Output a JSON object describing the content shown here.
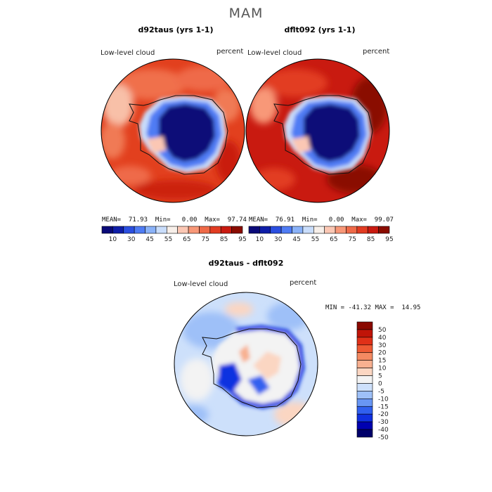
{
  "figure": {
    "title": "MAM"
  },
  "colors": {
    "abs_scale": [
      "#0a0a78",
      "#0f1ea8",
      "#2b4fe0",
      "#4f7cf4",
      "#8ab2f8",
      "#c9ddfb",
      "#f7efe9",
      "#fbc7b4",
      "#f89878",
      "#ef6a48",
      "#e23c22",
      "#c91a10",
      "#8a0c00"
    ],
    "diff_scale": [
      "#00006a",
      "#0000b0",
      "#1030e0",
      "#3060ef",
      "#6896f4",
      "#9ec0f8",
      "#cde0fb",
      "#f3f3f3",
      "#fbd6c2",
      "#f8b090",
      "#f48a62",
      "#ee5a34",
      "#e03018",
      "#c01408",
      "#8a0800"
    ]
  },
  "chart_data": [
    {
      "type": "heatmap",
      "panel": "left",
      "title": "d92taus (yrs 1-1)",
      "variable_label": "Low-level cloud",
      "units_label": "percent",
      "stats": {
        "mean": "71.93",
        "min": "0.00",
        "max": "97.74"
      },
      "stats_text": "MEAN=  71.93  Min=   0.00  Max=  97.74",
      "colorbar_ticks": [
        "10",
        "30",
        "45",
        "55",
        "65",
        "75",
        "85",
        "95"
      ]
    },
    {
      "type": "heatmap",
      "panel": "right",
      "title": "dflt092 (yrs 1-1)",
      "variable_label": "Low-level cloud",
      "units_label": "percent",
      "stats": {
        "mean": "76.91",
        "min": "0.00",
        "max": "99.07"
      },
      "stats_text": "MEAN=  76.91  Min=   0.00  Max=  99.07",
      "colorbar_ticks": [
        "10",
        "30",
        "45",
        "55",
        "65",
        "75",
        "85",
        "95"
      ]
    },
    {
      "type": "heatmap",
      "panel": "difference",
      "title": "d92taus - dflt092",
      "variable_label": "Low-level cloud",
      "units_label": "percent",
      "stats": {
        "min": "-41.32",
        "max": "14.95"
      },
      "stats_text": "MIN = -41.32 MAX =  14.95",
      "colorbar_ticks": [
        "50",
        "40",
        "30",
        "20",
        "15",
        "10",
        "5",
        "0",
        "-5",
        "-10",
        "-15",
        "-20",
        "-30",
        "-40",
        "-50"
      ]
    }
  ]
}
